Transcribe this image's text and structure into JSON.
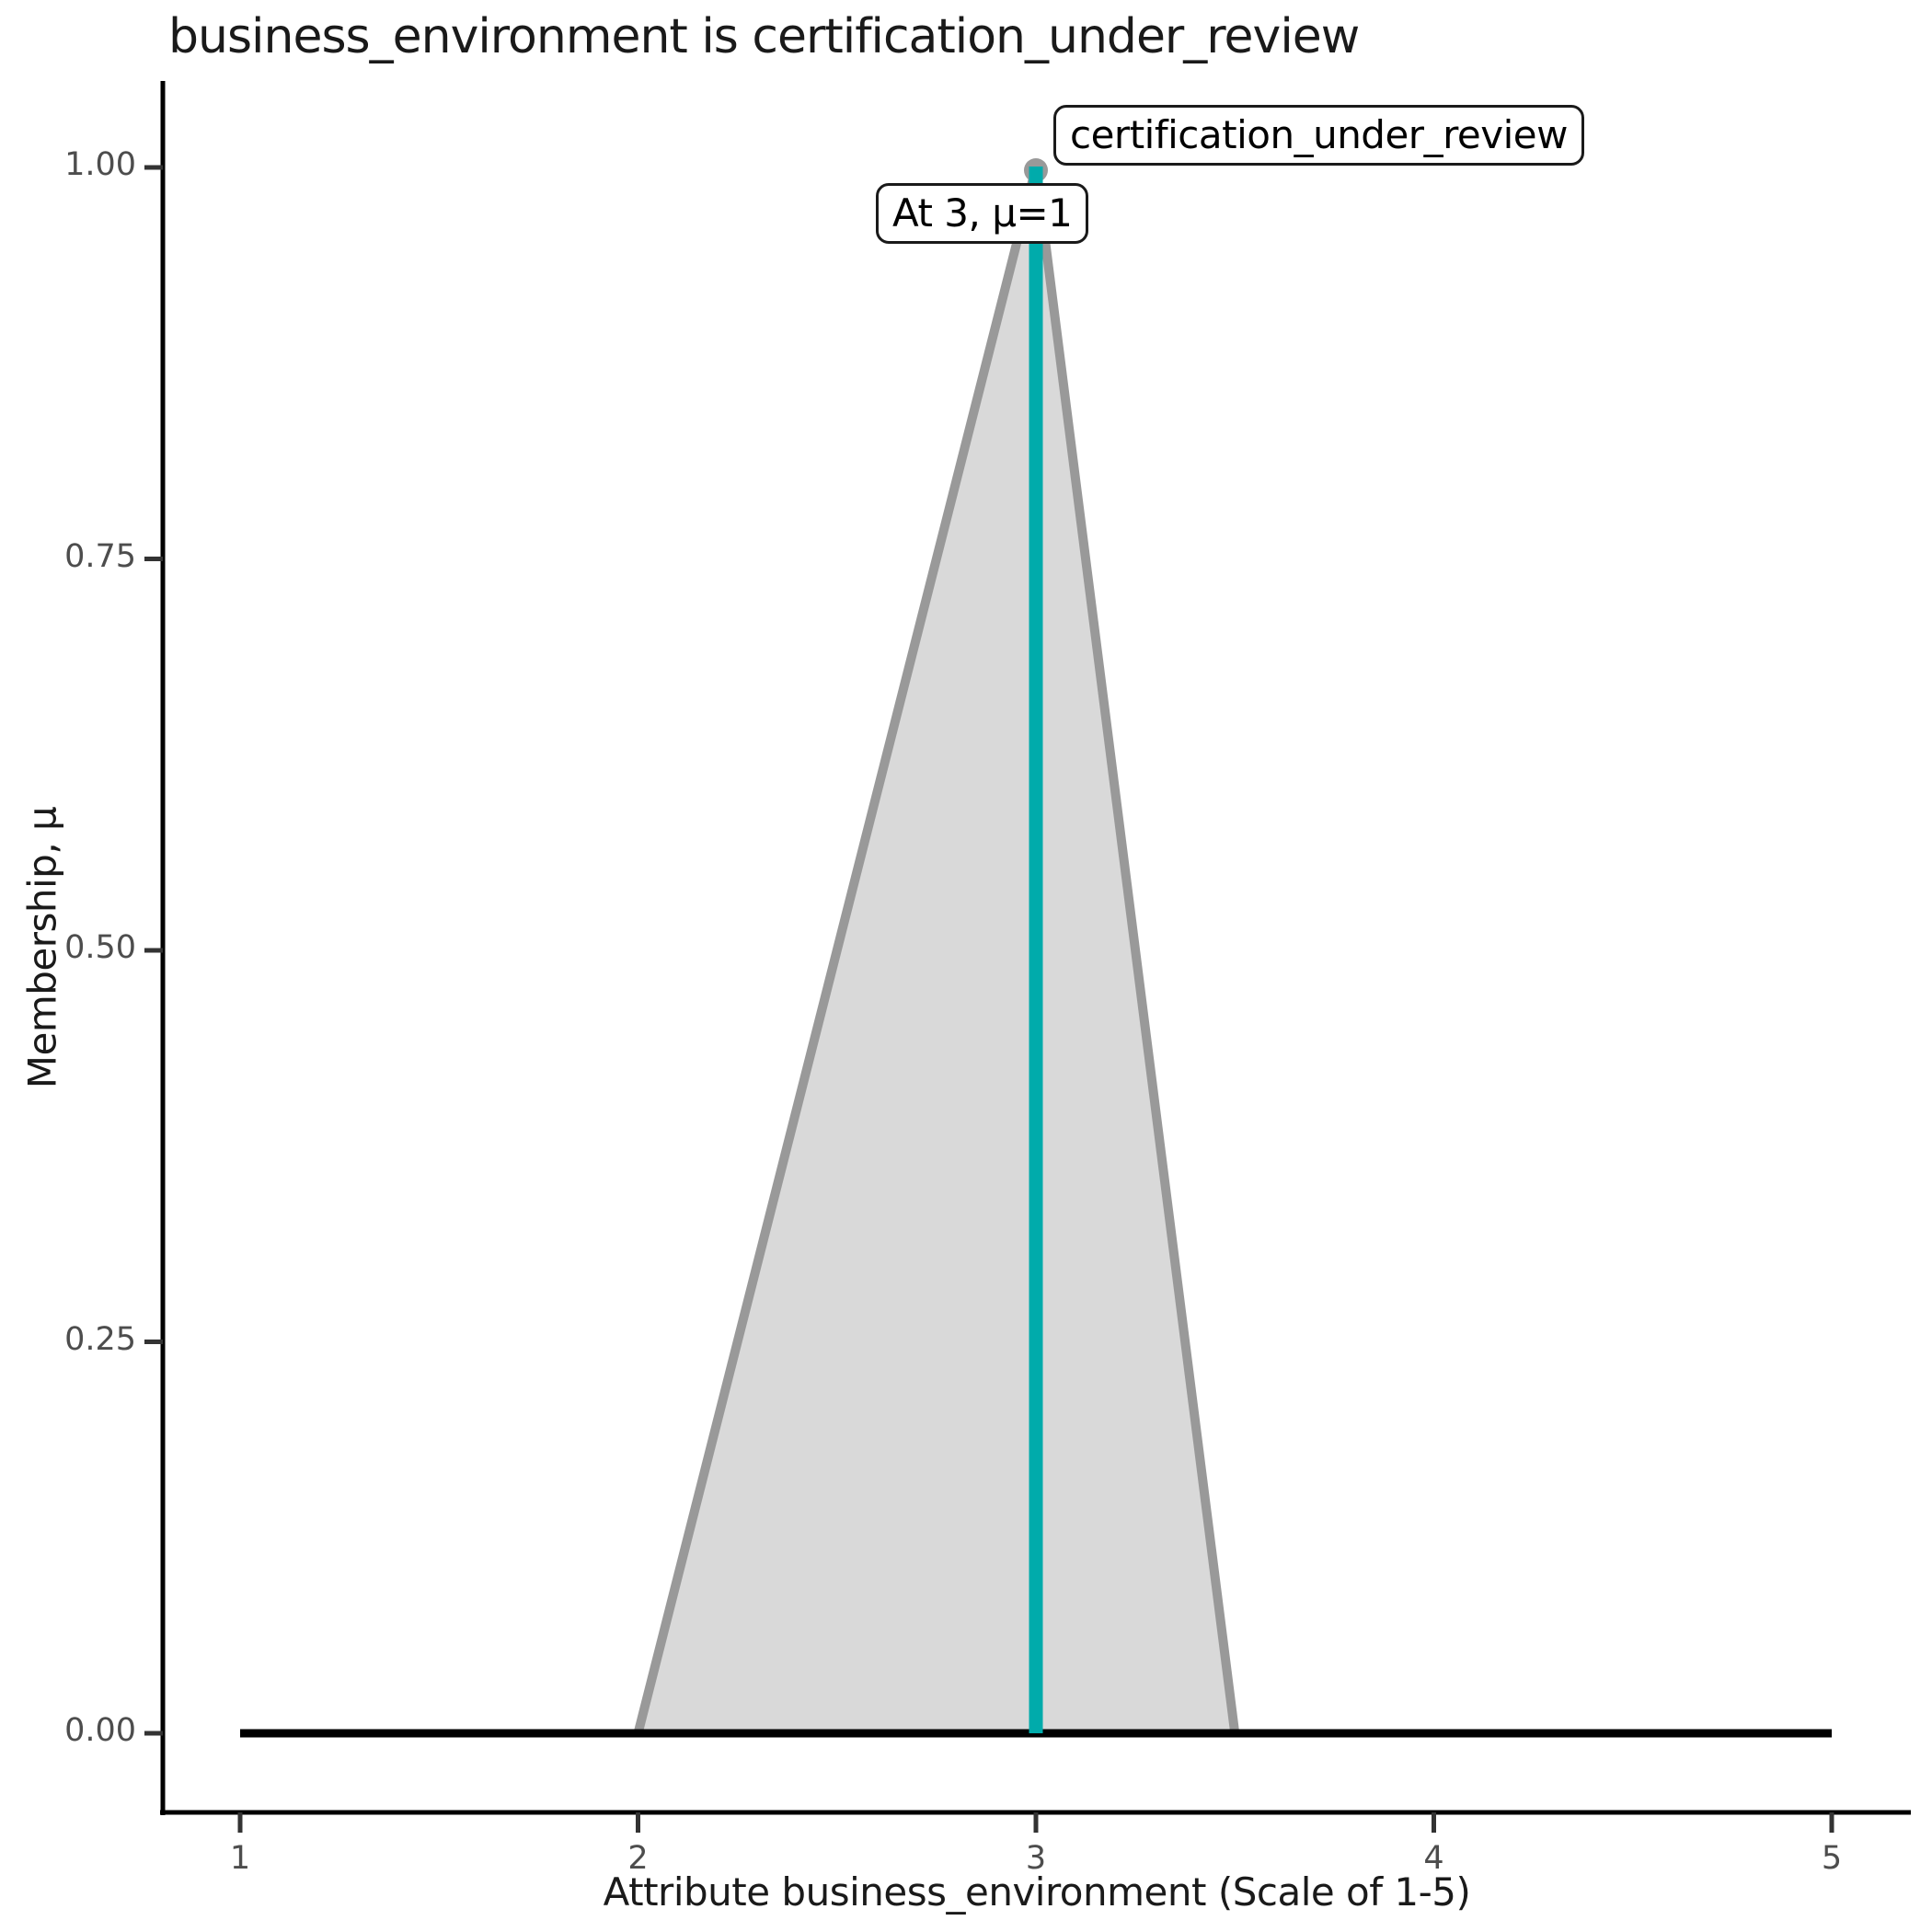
{
  "title": "business_environment is certification_under_review",
  "axes": {
    "x": {
      "label": "Attribute business_environment (Scale of 1-5)",
      "tick_values": [
        1,
        2,
        3,
        4,
        5
      ],
      "tick_labels": [
        "1",
        "2",
        "3",
        "4",
        "5"
      ],
      "range": [
        1,
        5
      ]
    },
    "y": {
      "label": "Membership, μ",
      "tick_values": [
        0,
        0.25,
        0.5,
        0.75,
        1
      ],
      "tick_labels": [
        "0.00",
        "0.25",
        "0.50",
        "0.75",
        "1.00"
      ],
      "range": [
        0,
        1
      ]
    }
  },
  "annotations": {
    "set_label": "certification_under_review",
    "point_label": "At 3, μ=1"
  },
  "colors": {
    "membership_fill": "#d9d9d9",
    "membership_stroke": "#999999",
    "peak_marker": "#999999",
    "highlight": "#00abab",
    "baseline": "#000000",
    "axis": "#000000",
    "tick_mark": "#333333",
    "tick_label": "#4d4d4d",
    "text": "#1a1a1a"
  },
  "chart_data": {
    "type": "area",
    "title": "business_environment is certification_under_review",
    "xlabel": "Attribute business_environment (Scale of 1-5)",
    "ylabel": "Membership, μ",
    "xlim": [
      1,
      5
    ],
    "ylim": [
      0,
      1
    ],
    "grid": false,
    "legend": false,
    "series": [
      {
        "name": "certification_under_review",
        "role": "triangular membership function",
        "points": [
          [
            1,
            0
          ],
          [
            2,
            0
          ],
          [
            3,
            1
          ],
          [
            3.5,
            0
          ],
          [
            5,
            0
          ]
        ]
      },
      {
        "name": "highlight at x=3",
        "role": "vertical highlight line",
        "points": [
          [
            3,
            0
          ],
          [
            3,
            1
          ]
        ]
      }
    ],
    "marker_point": [
      3,
      1
    ],
    "annotations": [
      {
        "text": "certification_under_review",
        "anchor": [
          3,
          1
        ],
        "placement": "upper-right"
      },
      {
        "text": "At 3, μ=1",
        "anchor": [
          3,
          1
        ],
        "placement": "below-left"
      }
    ]
  }
}
